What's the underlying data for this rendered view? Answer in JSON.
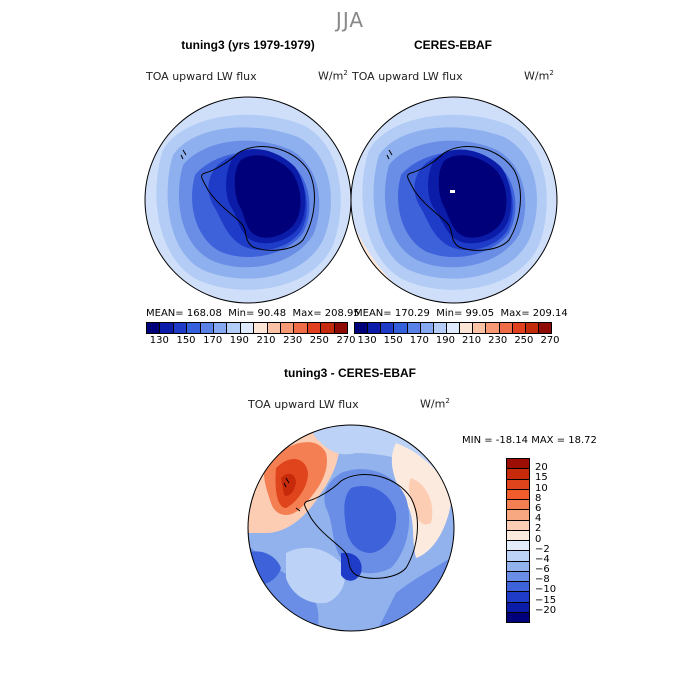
{
  "figure": {
    "season": "JJA"
  },
  "panel_left": {
    "title": "tuning3 (yrs 1979-1979)",
    "variable": "TOA upward LW flux",
    "units": "W/m",
    "units_exp": "2",
    "mean_label": "MEAN=",
    "mean": "168.08",
    "min_label": "Min=",
    "min": "90.48",
    "max_label": "Max=",
    "max": "208.95"
  },
  "panel_right": {
    "title": "CERES-EBAF",
    "variable": "TOA upward LW flux",
    "units": "W/m",
    "units_exp": "2",
    "mean_label": "MEAN=",
    "mean": "170.29",
    "min_label": "Min=",
    "min": "99.05",
    "max_label": "Max=",
    "max": "209.14"
  },
  "panel_diff": {
    "title": "tuning3 - CERES-EBAF",
    "variable": "TOA upward LW flux",
    "units": "W/m",
    "units_exp": "2",
    "minmax": "MIN = -18.14 MAX =  18.72"
  },
  "colorbar_abs": {
    "ticks": [
      "130",
      "150",
      "170",
      "190",
      "210",
      "230",
      "250",
      "270"
    ],
    "colors": [
      "#00007a",
      "#0a1ca8",
      "#1f3cc8",
      "#3560dc",
      "#5a82e6",
      "#86a8f0",
      "#b4cdf8",
      "#dfe9fc",
      "#fde6d8",
      "#fbc2a6",
      "#f69a76",
      "#ef6c48",
      "#e0401f",
      "#c42a0c",
      "#8e0c05"
    ]
  },
  "colorbar_diff": {
    "labels": [
      "20",
      "15",
      "10",
      "8",
      "6",
      "4",
      "2",
      "0",
      "−2",
      "−4",
      "−6",
      "−8",
      "−10",
      "−15",
      "−20"
    ],
    "colors": [
      "#9c0e04",
      "#c62a0a",
      "#e0441c",
      "#f05c2c",
      "#f47f52",
      "#f8a880",
      "#fccdb2",
      "#fdeade",
      "#e2ecfa",
      "#bcd2f6",
      "#92b2ee",
      "#6a8ee6",
      "#3e62da",
      "#1f3cc8",
      "#0a1ca8",
      "#00007a"
    ]
  }
}
